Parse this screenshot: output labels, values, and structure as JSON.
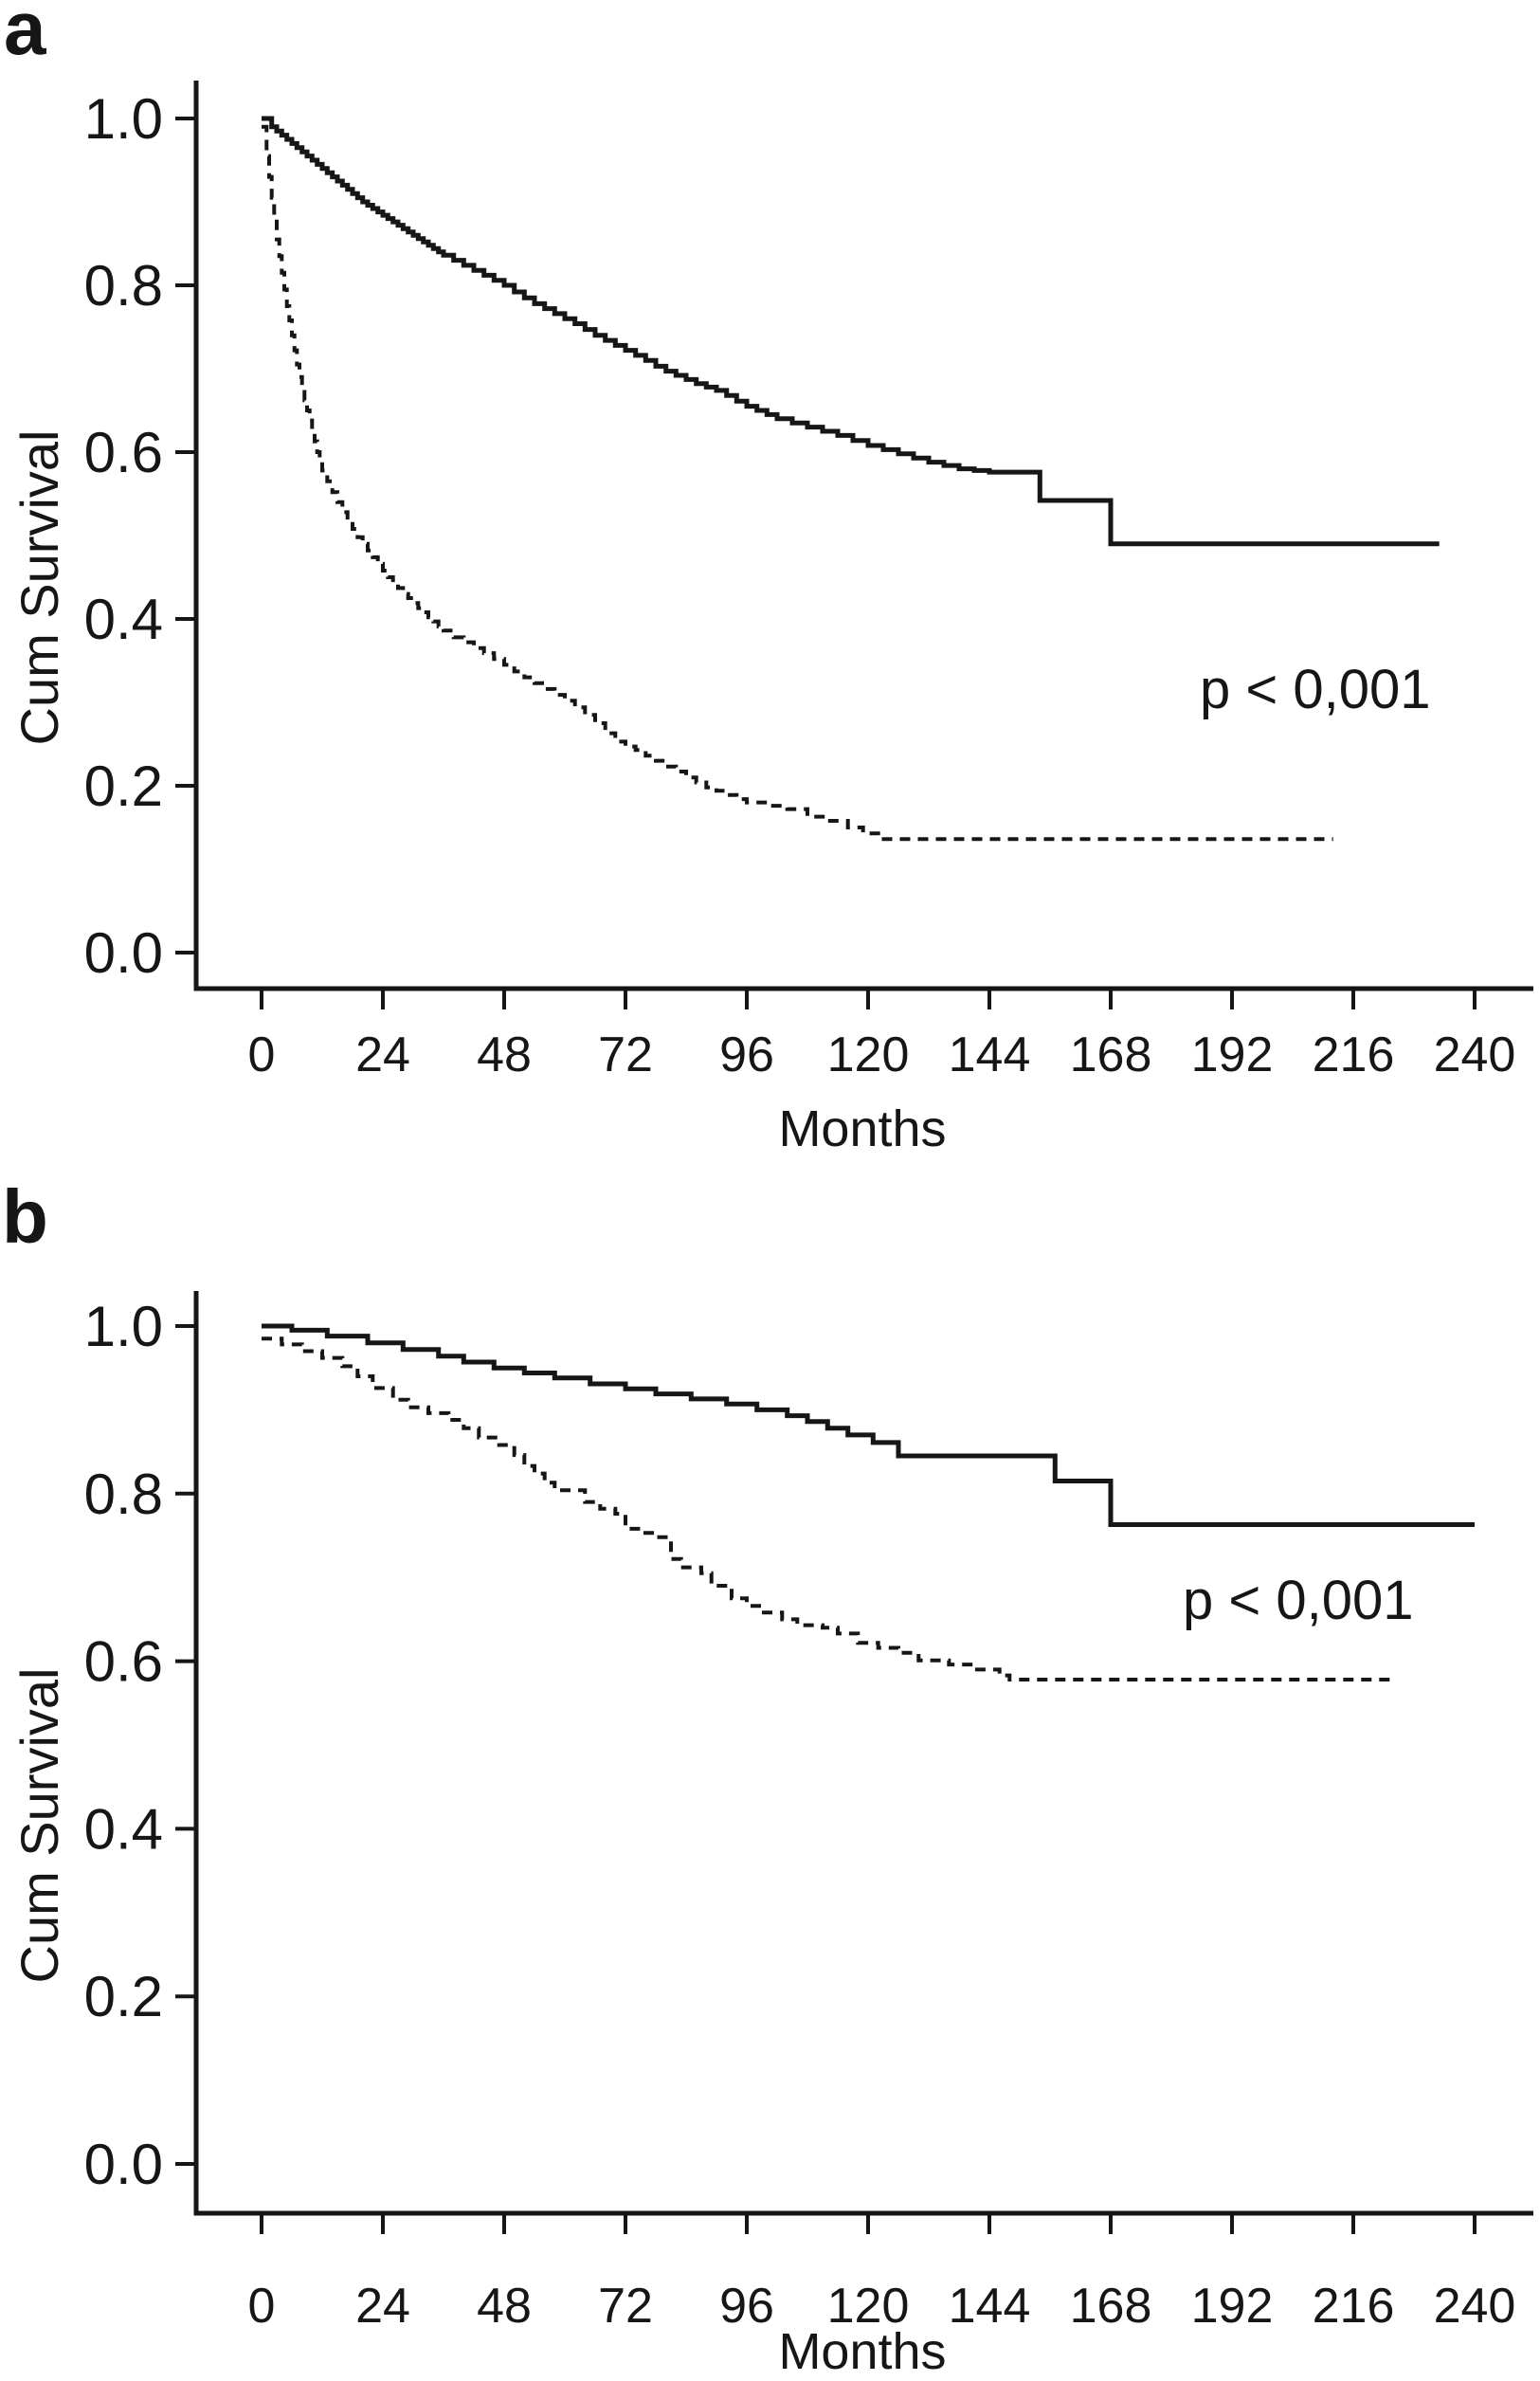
{
  "figure": {
    "background_color": "#ffffff",
    "line_color": "#161616",
    "description": "Two-panel Kaplan-Meier cumulative survival figure"
  },
  "chart_data": [
    {
      "type": "line",
      "subtype": "kaplan-meier-step",
      "panel_label": "a",
      "title": "",
      "xlabel": "Months",
      "ylabel": "Cum Survival",
      "annotation": "p < 0,001",
      "xlim": [
        0,
        252
      ],
      "ylim": [
        0,
        1.05
      ],
      "x_ticks": [
        0,
        24,
        48,
        72,
        96,
        120,
        144,
        168,
        192,
        216,
        240
      ],
      "y_ticks": [
        1.0,
        0.8,
        0.6,
        0.4,
        0.2,
        0.0
      ],
      "grid": false,
      "legend": "none",
      "series": [
        {
          "name": "group-1-solid",
          "line_style": "solid",
          "points": [
            [
              0,
              1.0
            ],
            [
              2,
              0.99
            ],
            [
              3,
              0.985
            ],
            [
              4,
              0.98
            ],
            [
              5,
              0.975
            ],
            [
              6,
              0.97
            ],
            [
              7,
              0.965
            ],
            [
              8,
              0.96
            ],
            [
              9,
              0.955
            ],
            [
              10,
              0.95
            ],
            [
              11,
              0.945
            ],
            [
              12,
              0.94
            ],
            [
              13,
              0.935
            ],
            [
              14,
              0.93
            ],
            [
              15,
              0.925
            ],
            [
              16,
              0.92
            ],
            [
              17,
              0.915
            ],
            [
              18,
              0.91
            ],
            [
              19,
              0.905
            ],
            [
              20,
              0.9
            ],
            [
              21,
              0.896
            ],
            [
              22,
              0.892
            ],
            [
              23,
              0.888
            ],
            [
              24,
              0.884
            ],
            [
              25,
              0.88
            ],
            [
              26,
              0.876
            ],
            [
              27,
              0.872
            ],
            [
              28,
              0.868
            ],
            [
              29,
              0.864
            ],
            [
              30,
              0.86
            ],
            [
              31,
              0.856
            ],
            [
              32,
              0.852
            ],
            [
              33,
              0.848
            ],
            [
              34,
              0.844
            ],
            [
              35,
              0.84
            ],
            [
              36,
              0.836
            ],
            [
              38,
              0.83
            ],
            [
              40,
              0.824
            ],
            [
              42,
              0.818
            ],
            [
              44,
              0.812
            ],
            [
              46,
              0.806
            ],
            [
              48,
              0.8
            ],
            [
              50,
              0.792
            ],
            [
              52,
              0.785
            ],
            [
              54,
              0.778
            ],
            [
              56,
              0.772
            ],
            [
              58,
              0.766
            ],
            [
              60,
              0.76
            ],
            [
              62,
              0.754
            ],
            [
              64,
              0.747
            ],
            [
              66,
              0.74
            ],
            [
              68,
              0.734
            ],
            [
              70,
              0.728
            ],
            [
              72,
              0.722
            ],
            [
              74,
              0.716
            ],
            [
              76,
              0.71
            ],
            [
              78,
              0.703
            ],
            [
              80,
              0.697
            ],
            [
              82,
              0.692
            ],
            [
              84,
              0.687
            ],
            [
              86,
              0.682
            ],
            [
              88,
              0.678
            ],
            [
              90,
              0.674
            ],
            [
              92,
              0.668
            ],
            [
              94,
              0.661
            ],
            [
              96,
              0.655
            ],
            [
              98,
              0.65
            ],
            [
              100,
              0.645
            ],
            [
              102,
              0.64
            ],
            [
              105,
              0.635
            ],
            [
              108,
              0.63
            ],
            [
              111,
              0.625
            ],
            [
              114,
              0.62
            ],
            [
              117,
              0.614
            ],
            [
              120,
              0.608
            ],
            [
              123,
              0.603
            ],
            [
              126,
              0.598
            ],
            [
              129,
              0.593
            ],
            [
              132,
              0.588
            ],
            [
              135,
              0.584
            ],
            [
              138,
              0.58
            ],
            [
              141,
              0.578
            ],
            [
              144,
              0.576
            ],
            [
              154,
              0.542
            ],
            [
              168,
              0.49
            ],
            [
              233,
              0.49
            ]
          ]
        },
        {
          "name": "group-2-dashed",
          "line_style": "dashed",
          "points": [
            [
              0,
              0.99
            ],
            [
              1,
              0.955
            ],
            [
              1.5,
              0.93
            ],
            [
              2,
              0.905
            ],
            [
              2.5,
              0.88
            ],
            [
              3,
              0.855
            ],
            [
              3.5,
              0.835
            ],
            [
              4,
              0.815
            ],
            [
              4.5,
              0.795
            ],
            [
              5,
              0.775
            ],
            [
              5.5,
              0.758
            ],
            [
              6,
              0.74
            ],
            [
              6.5,
              0.722
            ],
            [
              7,
              0.705
            ],
            [
              7.5,
              0.69
            ],
            [
              8,
              0.675
            ],
            [
              8.5,
              0.662
            ],
            [
              9,
              0.65
            ],
            [
              9.5,
              0.638
            ],
            [
              10,
              0.625
            ],
            [
              10.5,
              0.613
            ],
            [
              11,
              0.6
            ],
            [
              11.5,
              0.59
            ],
            [
              12,
              0.578
            ],
            [
              13,
              0.565
            ],
            [
              14,
              0.552
            ],
            [
              15,
              0.54
            ],
            [
              16,
              0.528
            ],
            [
              17,
              0.518
            ],
            [
              18,
              0.508
            ],
            [
              19,
              0.498
            ],
            [
              20,
              0.49
            ],
            [
              21,
              0.482
            ],
            [
              22,
              0.474
            ],
            [
              23,
              0.466
            ],
            [
              24,
              0.458
            ],
            [
              25,
              0.45
            ],
            [
              26,
              0.443
            ],
            [
              27,
              0.437
            ],
            [
              28,
              0.43
            ],
            [
              29,
              0.425
            ],
            [
              30,
              0.419
            ],
            [
              31,
              0.413
            ],
            [
              32,
              0.408
            ],
            [
              33,
              0.402
            ],
            [
              34,
              0.397
            ],
            [
              35,
              0.391
            ],
            [
              36,
              0.386
            ],
            [
              38,
              0.378
            ],
            [
              40,
              0.372
            ],
            [
              42,
              0.365
            ],
            [
              44,
              0.359
            ],
            [
              46,
              0.352
            ],
            [
              48,
              0.345
            ],
            [
              50,
              0.337
            ],
            [
              52,
              0.33
            ],
            [
              54,
              0.323
            ],
            [
              56,
              0.316
            ],
            [
              58,
              0.309
            ],
            [
              60,
              0.302
            ],
            [
              62,
              0.294
            ],
            [
              64,
              0.285
            ],
            [
              66,
              0.275
            ],
            [
              68,
              0.263
            ],
            [
              70,
              0.253
            ],
            [
              72,
              0.247
            ],
            [
              74,
              0.243
            ],
            [
              76,
              0.236
            ],
            [
              78,
              0.23
            ],
            [
              80,
              0.223
            ],
            [
              82,
              0.217
            ],
            [
              84,
              0.21
            ],
            [
              86,
              0.204
            ],
            [
              88,
              0.198
            ],
            [
              90,
              0.194
            ],
            [
              92,
              0.189
            ],
            [
              94,
              0.184
            ],
            [
              96,
              0.18
            ],
            [
              100,
              0.176
            ],
            [
              104,
              0.172
            ],
            [
              108,
              0.163
            ],
            [
              112,
              0.158
            ],
            [
              116,
              0.15
            ],
            [
              119,
              0.143
            ],
            [
              122,
              0.136
            ],
            [
              212,
              0.136
            ]
          ]
        }
      ]
    },
    {
      "type": "line",
      "subtype": "kaplan-meier-step",
      "panel_label": "b",
      "title": "",
      "xlabel": "Months",
      "ylabel": "Cum Survival",
      "annotation": "p < 0,001",
      "xlim": [
        0,
        252
      ],
      "ylim": [
        0,
        1.05
      ],
      "x_ticks": [
        0,
        24,
        48,
        72,
        96,
        120,
        144,
        168,
        192,
        216,
        240
      ],
      "y_ticks": [
        1.0,
        0.8,
        0.6,
        0.4,
        0.2,
        0.0
      ],
      "grid": false,
      "legend": "none",
      "series": [
        {
          "name": "group-1-solid",
          "line_style": "solid",
          "points": [
            [
              0,
              1.0
            ],
            [
              6,
              0.995
            ],
            [
              13,
              0.988
            ],
            [
              21,
              0.98
            ],
            [
              28,
              0.972
            ],
            [
              35,
              0.964
            ],
            [
              40,
              0.957
            ],
            [
              46,
              0.95
            ],
            [
              52,
              0.944
            ],
            [
              58,
              0.938
            ],
            [
              65,
              0.931
            ],
            [
              72,
              0.925
            ],
            [
              78,
              0.919
            ],
            [
              85,
              0.913
            ],
            [
              92,
              0.907
            ],
            [
              98,
              0.9
            ],
            [
              104,
              0.893
            ],
            [
              108,
              0.886
            ],
            [
              112,
              0.878
            ],
            [
              116,
              0.87
            ],
            [
              121,
              0.861
            ],
            [
              126,
              0.845
            ],
            [
              157,
              0.815
            ],
            [
              168,
              0.763
            ],
            [
              240,
              0.763
            ]
          ]
        },
        {
          "name": "group-2-dashed",
          "line_style": "dashed",
          "points": [
            [
              0,
              0.985
            ],
            [
              4,
              0.978
            ],
            [
              8,
              0.97
            ],
            [
              12,
              0.962
            ],
            [
              16,
              0.952
            ],
            [
              19,
              0.94
            ],
            [
              22,
              0.926
            ],
            [
              26,
              0.912
            ],
            [
              29,
              0.903
            ],
            [
              33,
              0.896
            ],
            [
              37,
              0.888
            ],
            [
              40,
              0.878
            ],
            [
              43,
              0.867
            ],
            [
              47,
              0.858
            ],
            [
              50,
              0.846
            ],
            [
              52,
              0.833
            ],
            [
              54,
              0.824
            ],
            [
              56,
              0.813
            ],
            [
              58,
              0.804
            ],
            [
              64,
              0.79
            ],
            [
              67,
              0.782
            ],
            [
              70,
              0.776
            ],
            [
              72,
              0.758
            ],
            [
              75,
              0.753
            ],
            [
              78,
              0.748
            ],
            [
              81,
              0.722
            ],
            [
              83,
              0.712
            ],
            [
              87,
              0.705
            ],
            [
              89,
              0.69
            ],
            [
              93,
              0.675
            ],
            [
              96,
              0.666
            ],
            [
              99,
              0.658
            ],
            [
              103,
              0.65
            ],
            [
              106,
              0.643
            ],
            [
              111,
              0.64
            ],
            [
              114,
              0.633
            ],
            [
              118,
              0.622
            ],
            [
              122,
              0.616
            ],
            [
              126,
              0.61
            ],
            [
              130,
              0.601
            ],
            [
              136,
              0.596
            ],
            [
              141,
              0.59
            ],
            [
              146,
              0.583
            ],
            [
              148,
              0.578
            ],
            [
              224,
              0.578
            ]
          ]
        }
      ]
    }
  ]
}
